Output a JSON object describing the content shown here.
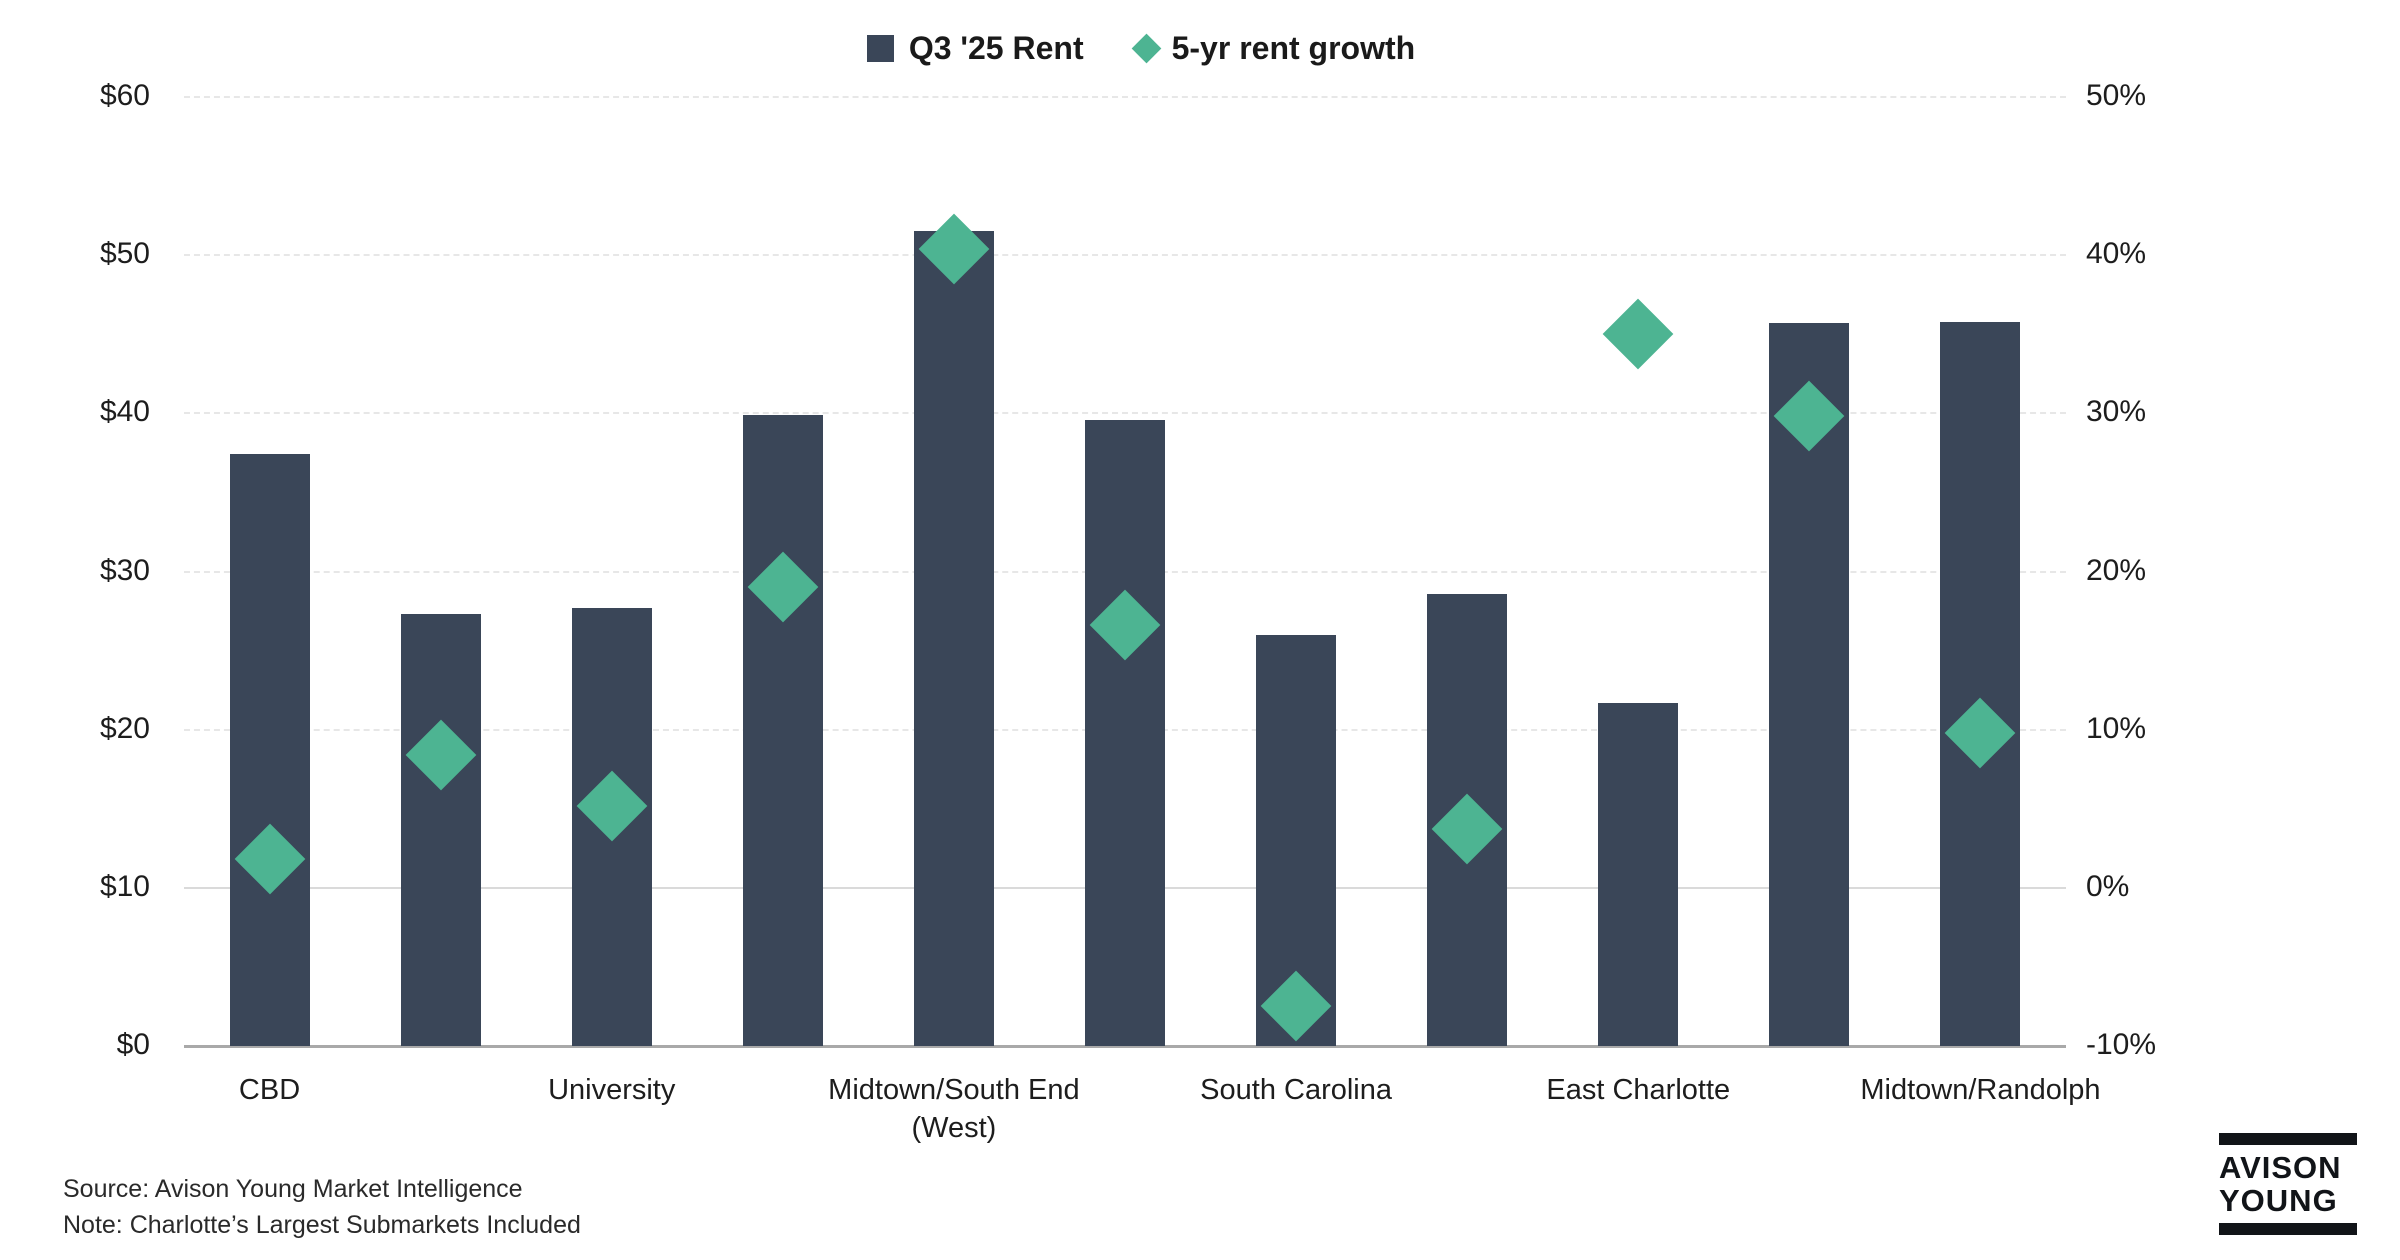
{
  "legend": {
    "items": [
      {
        "label": "Q3 '25 Rent",
        "marker": "square",
        "color": "#3A4658"
      },
      {
        "label": "5-yr rent growth",
        "marker": "diamond",
        "color": "#4DB492"
      }
    ]
  },
  "chart_data": {
    "type": "combo",
    "title": "",
    "grid": true,
    "legend_position": "top-center",
    "categories_note": "11 columns; only alternating columns are labeled on the x-axis",
    "x_tick_labels": [
      {
        "index": 0,
        "label": "CBD"
      },
      {
        "index": 2,
        "label": "University"
      },
      {
        "index": 4,
        "label": "Midtown/South End\n(West)"
      },
      {
        "index": 6,
        "label": "South Carolina"
      },
      {
        "index": 8,
        "label": "East Charlotte"
      },
      {
        "index": 10,
        "label": "Midtown/Randolph"
      }
    ],
    "series": [
      {
        "name": "Q3 '25 Rent",
        "type": "bar",
        "axis": "left",
        "color": "#3A4658",
        "values": [
          37.4,
          27.3,
          27.7,
          39.9,
          51.5,
          39.6,
          26.0,
          28.6,
          21.7,
          45.7,
          45.8
        ]
      },
      {
        "name": "5-yr rent growth",
        "type": "scatter",
        "marker": "diamond",
        "axis": "right",
        "color": "#4DB492",
        "values": [
          1.8,
          8.4,
          5.2,
          19.0,
          40.4,
          16.6,
          -7.5,
          3.7,
          35.0,
          29.8,
          9.8
        ]
      }
    ],
    "left_axis": {
      "min": 0,
      "max": 60,
      "ticks": [
        "$0",
        "$10",
        "$20",
        "$30",
        "$40",
        "$50",
        "$60"
      ]
    },
    "right_axis": {
      "min": -10,
      "max": 50,
      "ticks": [
        "-10%",
        "0%",
        "10%",
        "20%",
        "30%",
        "40%",
        "50%"
      ]
    }
  },
  "source_note": {
    "line1": "Source: Avison Young Market Intelligence",
    "line2": "Note: Charlotte’s Largest Submarkets Included"
  },
  "logo": {
    "line1": "AVISON",
    "line2": "YOUNG"
  }
}
